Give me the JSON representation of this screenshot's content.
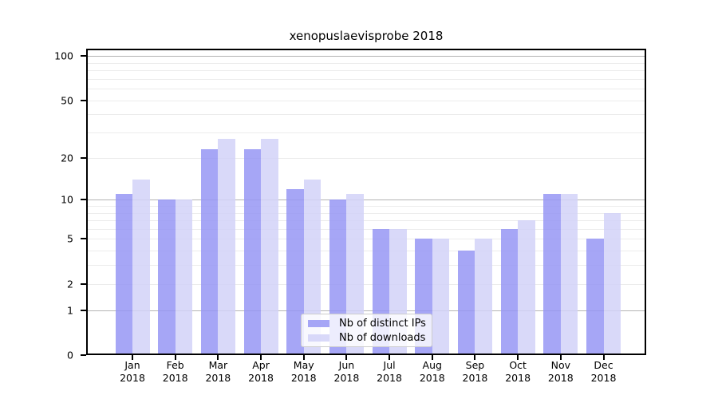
{
  "title": "xenopuslaevisprobe 2018",
  "chart_data": {
    "type": "bar",
    "title": "xenopuslaevisprobe 2018",
    "categories": [
      "Jan",
      "Feb",
      "Mar",
      "Apr",
      "May",
      "Jun",
      "Jul",
      "Aug",
      "Sep",
      "Oct",
      "Nov",
      "Dec"
    ],
    "category_year": "2018",
    "series": [
      {
        "name": "Nb of distinct IPs",
        "color": "rgba(150,150,245,0.85)",
        "values": [
          11,
          10,
          23,
          23,
          12,
          10,
          6,
          5,
          4,
          6,
          11,
          5
        ]
      },
      {
        "name": "Nb of downloads",
        "color": "rgba(210,210,248,0.85)",
        "values": [
          14,
          10,
          27,
          27,
          14,
          11,
          6,
          5,
          5,
          7,
          11,
          8
        ]
      }
    ],
    "xlabel": "",
    "ylabel": "",
    "yscale": "log10(value+1)",
    "ylim": [
      0,
      112
    ],
    "yticks": [
      100,
      50,
      20,
      10,
      5,
      2,
      1,
      0
    ],
    "major_gridlines": [
      1,
      10,
      100
    ],
    "minor_gridlines": [
      2,
      3,
      4,
      5,
      6,
      7,
      8,
      9,
      20,
      30,
      40,
      50,
      60,
      70,
      80,
      90
    ],
    "grid": true,
    "legend_position": "lower center"
  },
  "legend": {
    "items": [
      {
        "label": "Nb of distinct IPs",
        "color": "rgba(150,150,245,0.85)"
      },
      {
        "label": "Nb of downloads",
        "color": "rgba(210,210,248,0.85)"
      }
    ]
  }
}
